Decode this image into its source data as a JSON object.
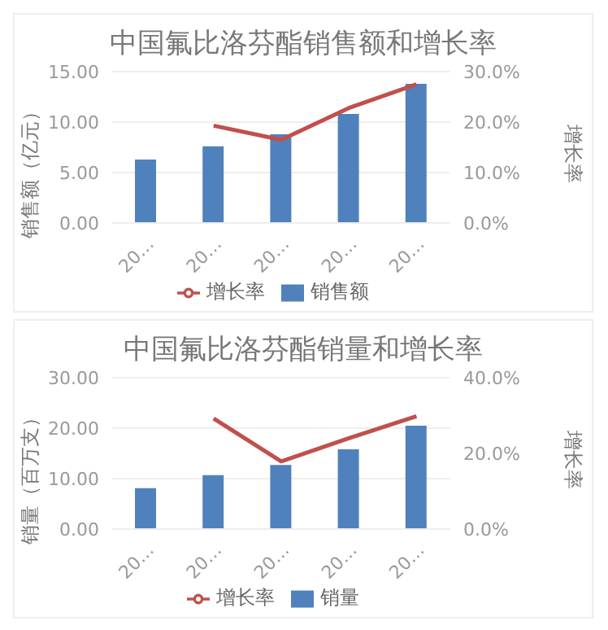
{
  "chart_data": [
    {
      "type": "bar",
      "title": "中国氟比洛芬酯销售额和增长率",
      "ylabel": "销售额（亿元）",
      "y2label": "增长率",
      "categories": [
        "20…",
        "20…",
        "20…",
        "20…",
        "20…"
      ],
      "series": [
        {
          "name": "销售额",
          "color": "#4f81bd",
          "values": [
            6.3,
            7.6,
            8.8,
            10.8,
            13.8
          ]
        },
        {
          "name": "增长率",
          "type": "line",
          "axis": "y2",
          "color": "#c0504d",
          "values": [
            null,
            19.3,
            16.5,
            22.8,
            27.5
          ]
        }
      ],
      "ylim": [
        0,
        15
      ],
      "yticks": [
        {
          "value": 0,
          "label": "0.00"
        },
        {
          "value": 5,
          "label": "5.00"
        },
        {
          "value": 10,
          "label": "10.00"
        },
        {
          "value": 15,
          "label": "15.00"
        }
      ],
      "y2lim": [
        0,
        30
      ],
      "y2ticks": [
        {
          "value": 0,
          "label": "0.0%"
        },
        {
          "value": 10,
          "label": "10.0%"
        },
        {
          "value": 20,
          "label": "20.0%"
        },
        {
          "value": 30,
          "label": "30.0%"
        }
      ],
      "grid": "y",
      "legend": "bottom",
      "marker": "none"
    },
    {
      "type": "bar",
      "title": "中国氟比洛芬酯销量和增长率",
      "ylabel": "销量（百万支）",
      "y2label": "增长率",
      "categories": [
        "20…",
        "20…",
        "20…",
        "20…",
        "20…"
      ],
      "series": [
        {
          "name": "销量",
          "color": "#4f81bd",
          "values": [
            8.1,
            10.7,
            12.7,
            15.8,
            20.5
          ]
        },
        {
          "name": "增长率",
          "type": "line",
          "axis": "y2",
          "color": "#c0504d",
          "values": [
            null,
            29.2,
            17.9,
            24.0,
            29.8
          ]
        }
      ],
      "ylim": [
        0,
        30
      ],
      "yticks": [
        {
          "value": 0,
          "label": "0.00"
        },
        {
          "value": 10,
          "label": "10.00"
        },
        {
          "value": 20,
          "label": "20.00"
        },
        {
          "value": 30,
          "label": "30.00"
        }
      ],
      "y2lim": [
        0,
        40
      ],
      "y2ticks": [
        {
          "value": 0,
          "label": "0.0%"
        },
        {
          "value": 20,
          "label": "20.0%"
        },
        {
          "value": 40,
          "label": "40.0%"
        }
      ],
      "grid": "y",
      "legend": "bottom",
      "marker": "none"
    }
  ]
}
